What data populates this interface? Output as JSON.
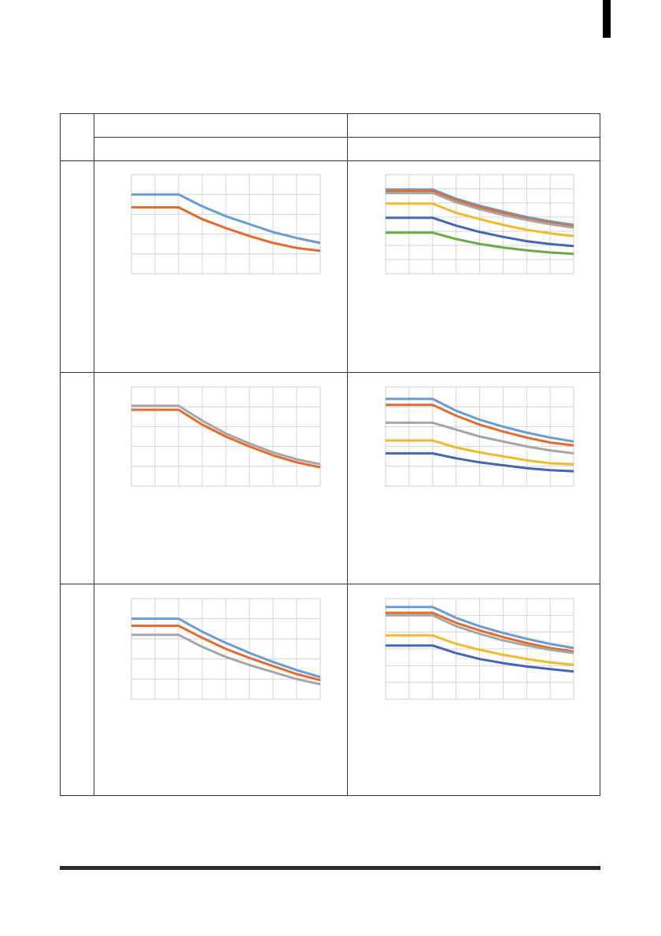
{
  "page": {
    "header_row_1": [
      "",
      ""
    ],
    "header_row_2": [
      "",
      ""
    ],
    "row_labels": [
      "",
      "",
      ""
    ]
  },
  "colors": {
    "blue_light": "#6A9BD4",
    "orange": "#E46B2C",
    "gray": "#A6A6A6",
    "yellow": "#F2B92B",
    "blue_dark": "#4565B7",
    "green": "#6DAA45"
  },
  "chart_data": [
    {
      "panel": "row1-left",
      "type": "line",
      "x": [
        0,
        1,
        2,
        3,
        4,
        5,
        6,
        7,
        8
      ],
      "xlim": [
        0,
        8
      ],
      "ylim": [
        0,
        5
      ],
      "grid": true,
      "series": [
        {
          "color": "blue_light",
          "values": [
            4.0,
            4.0,
            4.0,
            3.4,
            2.9,
            2.5,
            2.1,
            1.8,
            1.55
          ]
        },
        {
          "color": "orange",
          "values": [
            3.35,
            3.35,
            3.35,
            2.75,
            2.3,
            1.9,
            1.55,
            1.3,
            1.15
          ]
        }
      ]
    },
    {
      "panel": "row1-right",
      "type": "line",
      "x": [
        0,
        1,
        2,
        3,
        4,
        5,
        6,
        7,
        8
      ],
      "xlim": [
        0,
        8
      ],
      "ylim": [
        0,
        7
      ],
      "grid": true,
      "series": [
        {
          "color": "blue_light",
          "values": [
            5.95,
            5.95,
            5.95,
            5.3,
            4.8,
            4.4,
            4.0,
            3.7,
            3.45
          ]
        },
        {
          "color": "orange",
          "values": [
            5.85,
            5.85,
            5.85,
            5.2,
            4.7,
            4.3,
            3.9,
            3.6,
            3.35
          ]
        },
        {
          "color": "gray",
          "values": [
            5.7,
            5.7,
            5.7,
            5.05,
            4.55,
            4.15,
            3.8,
            3.5,
            3.25
          ]
        },
        {
          "color": "yellow",
          "values": [
            4.95,
            4.95,
            4.95,
            4.3,
            3.85,
            3.45,
            3.1,
            2.85,
            2.65
          ]
        },
        {
          "color": "blue_dark",
          "values": [
            3.95,
            3.95,
            3.95,
            3.4,
            2.95,
            2.6,
            2.3,
            2.1,
            1.95
          ]
        },
        {
          "color": "green",
          "values": [
            2.9,
            2.9,
            2.9,
            2.45,
            2.1,
            1.85,
            1.65,
            1.5,
            1.4
          ]
        }
      ]
    },
    {
      "panel": "row2-left",
      "type": "line",
      "x": [
        0,
        1,
        2,
        3,
        4,
        5,
        6,
        7,
        8
      ],
      "xlim": [
        0,
        8
      ],
      "ylim": [
        0,
        5
      ],
      "grid": true,
      "series": [
        {
          "color": "gray",
          "values": [
            4.05,
            4.05,
            4.05,
            3.3,
            2.65,
            2.15,
            1.7,
            1.35,
            1.1
          ]
        },
        {
          "color": "orange",
          "values": [
            3.85,
            3.85,
            3.85,
            3.1,
            2.5,
            2.0,
            1.55,
            1.2,
            0.95
          ]
        }
      ]
    },
    {
      "panel": "row2-right",
      "type": "line",
      "x": [
        0,
        1,
        2,
        3,
        4,
        5,
        6,
        7,
        8
      ],
      "xlim": [
        0,
        8
      ],
      "ylim": [
        0,
        5
      ],
      "grid": true,
      "series": [
        {
          "color": "blue_light",
          "values": [
            4.4,
            4.4,
            4.4,
            3.8,
            3.35,
            3.0,
            2.7,
            2.45,
            2.25
          ]
        },
        {
          "color": "orange",
          "values": [
            4.1,
            4.1,
            4.1,
            3.55,
            3.1,
            2.75,
            2.45,
            2.2,
            2.05
          ]
        },
        {
          "color": "gray",
          "values": [
            3.2,
            3.2,
            3.2,
            2.85,
            2.5,
            2.25,
            2.0,
            1.8,
            1.65
          ]
        },
        {
          "color": "yellow",
          "values": [
            2.3,
            2.3,
            2.3,
            1.95,
            1.7,
            1.5,
            1.3,
            1.15,
            1.1
          ]
        },
        {
          "color": "blue_dark",
          "values": [
            1.65,
            1.65,
            1.65,
            1.4,
            1.2,
            1.05,
            0.9,
            0.8,
            0.75
          ]
        }
      ]
    },
    {
      "panel": "row3-left",
      "type": "line",
      "x": [
        0,
        1,
        2,
        3,
        4,
        5,
        6,
        7,
        8
      ],
      "xlim": [
        0,
        8
      ],
      "ylim": [
        0,
        5
      ],
      "grid": true,
      "series": [
        {
          "color": "blue_light",
          "values": [
            4.0,
            4.0,
            4.0,
            3.35,
            2.8,
            2.3,
            1.85,
            1.45,
            1.1
          ]
        },
        {
          "color": "orange",
          "values": [
            3.65,
            3.65,
            3.65,
            3.05,
            2.5,
            2.05,
            1.65,
            1.25,
            0.95
          ]
        },
        {
          "color": "gray",
          "values": [
            3.2,
            3.2,
            3.2,
            2.6,
            2.1,
            1.7,
            1.35,
            1.0,
            0.75
          ]
        }
      ]
    },
    {
      "panel": "row3-right",
      "type": "line",
      "x": [
        0,
        1,
        2,
        3,
        4,
        5,
        6,
        7,
        8
      ],
      "xlim": [
        0,
        8
      ],
      "ylim": [
        0,
        6
      ],
      "grid": true,
      "series": [
        {
          "color": "blue_light",
          "values": [
            5.5,
            5.5,
            5.5,
            4.85,
            4.35,
            3.95,
            3.6,
            3.3,
            3.05
          ]
        },
        {
          "color": "orange",
          "values": [
            5.15,
            5.15,
            5.15,
            4.55,
            4.1,
            3.7,
            3.35,
            3.05,
            2.85
          ]
        },
        {
          "color": "gray",
          "values": [
            5.0,
            5.0,
            5.0,
            4.35,
            3.9,
            3.5,
            3.2,
            2.95,
            2.75
          ]
        },
        {
          "color": "yellow",
          "values": [
            3.8,
            3.8,
            3.8,
            3.3,
            2.95,
            2.65,
            2.4,
            2.2,
            2.05
          ]
        },
        {
          "color": "blue_dark",
          "values": [
            3.2,
            3.2,
            3.2,
            2.75,
            2.4,
            2.15,
            1.95,
            1.8,
            1.65
          ]
        }
      ]
    }
  ]
}
